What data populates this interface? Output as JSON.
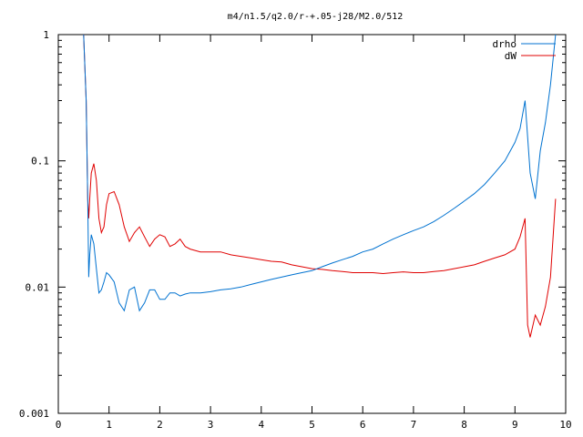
{
  "chart_data": {
    "type": "line",
    "title": "m4/n1.5/q2.0/r-+.05-j28/M2.0/512",
    "xlabel": "",
    "ylabel": "",
    "xlim": [
      0,
      10
    ],
    "ylim": [
      0.001,
      1
    ],
    "yscale": "log",
    "grid": false,
    "legend_position": "top-right",
    "x_ticks": [
      "0",
      "1",
      "2",
      "3",
      "4",
      "5",
      "6",
      "7",
      "8",
      "9",
      "10"
    ],
    "y_ticks": [
      "0.001",
      "0.01",
      "0.1",
      "1"
    ],
    "series": [
      {
        "name": "drho",
        "color": "#0072d0",
        "x": [
          0.5,
          0.55,
          0.58,
          0.6,
          0.62,
          0.65,
          0.7,
          0.75,
          0.8,
          0.85,
          0.9,
          0.95,
          1.0,
          1.1,
          1.2,
          1.3,
          1.4,
          1.5,
          1.6,
          1.7,
          1.8,
          1.9,
          2.0,
          2.1,
          2.2,
          2.3,
          2.4,
          2.5,
          2.6,
          2.8,
          3.0,
          3.2,
          3.4,
          3.6,
          3.8,
          4.0,
          4.2,
          4.4,
          4.6,
          4.8,
          5.0,
          5.2,
          5.4,
          5.6,
          5.8,
          6.0,
          6.2,
          6.4,
          6.6,
          6.8,
          7.0,
          7.2,
          7.4,
          7.6,
          7.8,
          8.0,
          8.2,
          8.4,
          8.6,
          8.8,
          9.0,
          9.1,
          9.2,
          9.3,
          9.4,
          9.5,
          9.6,
          9.7,
          9.8
        ],
        "values": [
          1.0,
          0.3,
          0.05,
          0.012,
          0.018,
          0.026,
          0.022,
          0.014,
          0.009,
          0.0095,
          0.011,
          0.013,
          0.0125,
          0.011,
          0.0075,
          0.0065,
          0.0095,
          0.01,
          0.0065,
          0.0075,
          0.0095,
          0.0095,
          0.008,
          0.008,
          0.009,
          0.009,
          0.0085,
          0.0088,
          0.009,
          0.009,
          0.0092,
          0.0095,
          0.0097,
          0.01,
          0.0105,
          0.011,
          0.0115,
          0.012,
          0.0125,
          0.013,
          0.0135,
          0.0145,
          0.0155,
          0.0165,
          0.0175,
          0.019,
          0.02,
          0.022,
          0.024,
          0.026,
          0.028,
          0.03,
          0.033,
          0.037,
          0.042,
          0.048,
          0.055,
          0.065,
          0.08,
          0.1,
          0.14,
          0.18,
          0.3,
          0.08,
          0.05,
          0.12,
          0.2,
          0.4,
          1.0
        ]
      },
      {
        "name": "dW",
        "color": "#e00000",
        "x": [
          0.5,
          0.55,
          0.58,
          0.6,
          0.62,
          0.65,
          0.7,
          0.75,
          0.8,
          0.85,
          0.9,
          0.95,
          1.0,
          1.1,
          1.2,
          1.3,
          1.4,
          1.5,
          1.6,
          1.7,
          1.8,
          1.9,
          2.0,
          2.1,
          2.2,
          2.3,
          2.4,
          2.5,
          2.6,
          2.8,
          3.0,
          3.2,
          3.4,
          3.6,
          3.8,
          4.0,
          4.2,
          4.4,
          4.6,
          4.8,
          5.0,
          5.2,
          5.4,
          5.6,
          5.8,
          6.0,
          6.2,
          6.4,
          6.6,
          6.8,
          7.0,
          7.2,
          7.4,
          7.6,
          7.8,
          8.0,
          8.2,
          8.4,
          8.6,
          8.8,
          9.0,
          9.1,
          9.2,
          9.25,
          9.3,
          9.4,
          9.5,
          9.6,
          9.7,
          9.8
        ],
        "values": [
          1.0,
          0.3,
          0.05,
          0.035,
          0.05,
          0.08,
          0.095,
          0.07,
          0.035,
          0.027,
          0.03,
          0.045,
          0.055,
          0.057,
          0.045,
          0.03,
          0.023,
          0.027,
          0.03,
          0.025,
          0.021,
          0.024,
          0.026,
          0.025,
          0.021,
          0.022,
          0.024,
          0.021,
          0.02,
          0.019,
          0.019,
          0.019,
          0.018,
          0.0175,
          0.017,
          0.0165,
          0.016,
          0.0158,
          0.015,
          0.0145,
          0.014,
          0.0138,
          0.0135,
          0.0133,
          0.013,
          0.013,
          0.013,
          0.0128,
          0.013,
          0.0132,
          0.013,
          0.013,
          0.0133,
          0.0135,
          0.014,
          0.0145,
          0.015,
          0.016,
          0.017,
          0.018,
          0.02,
          0.025,
          0.035,
          0.005,
          0.004,
          0.006,
          0.005,
          0.007,
          0.012,
          0.05
        ]
      }
    ]
  }
}
